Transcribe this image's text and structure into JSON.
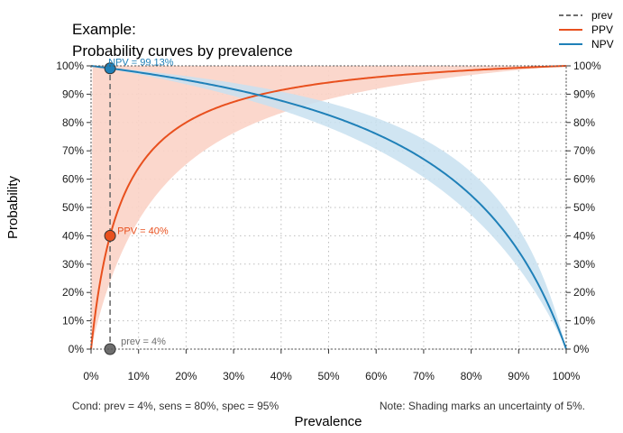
{
  "chart_data": {
    "type": "line",
    "title_line1": "Example:",
    "title_line2": "Probability curves by prevalence",
    "xlabel": "Prevalence",
    "ylabel": "Probability",
    "xlim": [
      0,
      1
    ],
    "ylim": [
      0,
      1
    ],
    "x_ticks": [
      "0%",
      "10%",
      "20%",
      "30%",
      "40%",
      "50%",
      "60%",
      "70%",
      "80%",
      "90%",
      "100%"
    ],
    "y_ticks": [
      "0%",
      "10%",
      "20%",
      "30%",
      "40%",
      "50%",
      "60%",
      "70%",
      "80%",
      "90%",
      "100%"
    ],
    "grid": true,
    "legend_position": "top-right",
    "conditions": {
      "prev": 0.04,
      "sens": 0.8,
      "spec": 0.95,
      "uncertainty": 0.05
    },
    "series": [
      {
        "name": "prev",
        "color": "#6e6e6e",
        "style": "dashed"
      },
      {
        "name": "PPV",
        "color": "#e8501e",
        "band_color": "#fbd3c6"
      },
      {
        "name": "NPV",
        "color": "#1f80b8",
        "band_color": "#c8e0f0"
      }
    ],
    "points": [
      {
        "series": "NPV",
        "x": 0.04,
        "y": 0.9913,
        "label": "NPV = 99.13%"
      },
      {
        "series": "PPV",
        "x": 0.04,
        "y": 0.4,
        "label": "PPV = 40%"
      },
      {
        "series": "prev",
        "x": 0.04,
        "y": 0.0,
        "label": "prev = 4%"
      }
    ],
    "note_left": "Cond:  prev = 4%, sens = 80%, spec = 95%",
    "note_right": "Note:  Shading marks an uncertainty of 5%."
  }
}
